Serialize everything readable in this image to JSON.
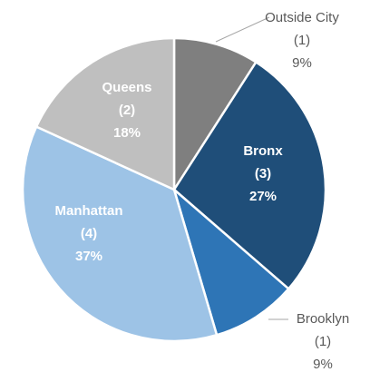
{
  "chart_data": {
    "type": "pie",
    "categories": [
      "Outside City",
      "Bronx",
      "Brooklyn",
      "Manhattan",
      "Queens"
    ],
    "values": [
      1,
      3,
      1,
      4,
      2
    ],
    "value_labels": [
      "(1)",
      "(3)",
      "(1)",
      "(4)",
      "(2)"
    ],
    "percent_labels": [
      "9%",
      "27%",
      "9%",
      "37%",
      "18%"
    ],
    "colors": [
      "#7f7f7f",
      "#1f4e79",
      "#2e75b6",
      "#9dc3e6",
      "#bfbfbf"
    ]
  }
}
